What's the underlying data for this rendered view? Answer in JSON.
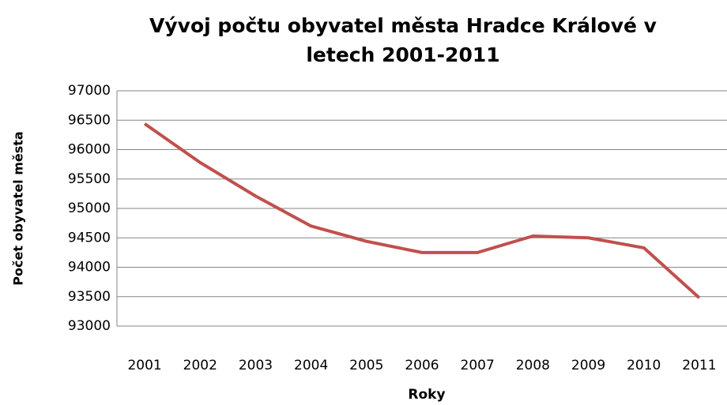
{
  "chart_data": {
    "type": "line",
    "title": "Vývoj počtu obyvatel města Hradce Králové v letech 2001-2011",
    "x_label": "Roky",
    "y_label": "Počet obyvatel města",
    "categories": [
      "2001",
      "2002",
      "2003",
      "2004",
      "2005",
      "2006",
      "2007",
      "2008",
      "2009",
      "2010",
      "2011"
    ],
    "series": [
      {
        "name": "Počet obyvatel",
        "color": "#c0504d",
        "values": [
          96440,
          95780,
          95210,
          94700,
          94440,
          94250,
          94250,
          94530,
          94500,
          94330,
          93480
        ]
      }
    ],
    "ylim": [
      93000,
      97000
    ],
    "yticks": [
      93000,
      93500,
      94000,
      94500,
      95000,
      95500,
      96000,
      96500,
      97000
    ],
    "grid": true
  }
}
